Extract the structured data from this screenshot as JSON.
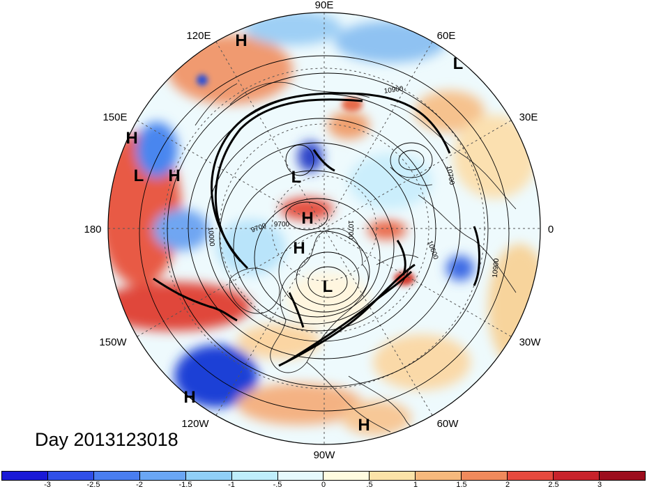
{
  "title": "Day 2013123018",
  "longitude_labels": {
    "top": "90E",
    "upper_left": "120E",
    "upper_right": "60E",
    "mid_left_upper": "150E",
    "mid_right_upper": "30E",
    "left": "180",
    "right": "0",
    "lower_left": "150W",
    "lower_right": "30W",
    "bottom_left": "120W",
    "bottom_right": "60W",
    "bottom": "90W"
  },
  "pressure_centers": [
    {
      "label": "H"
    },
    {
      "label": "L"
    },
    {
      "label": "H"
    },
    {
      "label": "L"
    },
    {
      "label": "H"
    },
    {
      "label": "L"
    },
    {
      "label": "H"
    },
    {
      "label": "H"
    },
    {
      "label": "L"
    },
    {
      "label": "H"
    },
    {
      "label": "H"
    }
  ],
  "contour_labels": [
    "10900",
    "10700",
    "10700",
    "10600",
    "10900",
    "9700",
    "10000",
    "9700"
  ],
  "colorbar": {
    "labels": [
      "-3",
      "-2.5",
      "-2",
      "-1.5",
      "-1",
      "-.5",
      "0",
      ".5",
      "1",
      "1.5",
      "2",
      "2.5",
      "3"
    ],
    "colors": [
      "#1a1ad6",
      "#2f4fe8",
      "#4a7ef0",
      "#6aa6f4",
      "#90cff7",
      "#bfeefb",
      "#e6f9fd",
      "#fffbe0",
      "#fbe3a8",
      "#f6b97d",
      "#f08a5c",
      "#e64a3e",
      "#c8232b",
      "#9c0d1d"
    ]
  }
}
